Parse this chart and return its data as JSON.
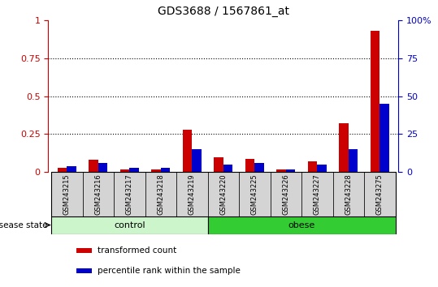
{
  "title": "GDS3688 / 1567861_at",
  "samples": [
    "GSM243215",
    "GSM243216",
    "GSM243217",
    "GSM243218",
    "GSM243219",
    "GSM243220",
    "GSM243225",
    "GSM243226",
    "GSM243227",
    "GSM243228",
    "GSM243275"
  ],
  "transformed_count": [
    0.03,
    0.08,
    0.02,
    0.02,
    0.28,
    0.1,
    0.09,
    0.02,
    0.07,
    0.32,
    0.93
  ],
  "percentile_rank_pct": [
    4,
    6,
    3,
    3,
    15,
    5,
    6,
    2,
    5,
    15,
    45
  ],
  "groups": [
    {
      "label": "control",
      "start": 0,
      "end": 5,
      "color": "#ccf5cc"
    },
    {
      "label": "obese",
      "start": 5,
      "end": 11,
      "color": "#33cc33"
    }
  ],
  "ylim_left": [
    0,
    1.0
  ],
  "ylim_right": [
    0,
    100
  ],
  "yticks_left": [
    0,
    0.25,
    0.5,
    0.75,
    1.0
  ],
  "ytick_labels_left": [
    "0",
    "0.25",
    "0.5",
    "0.75",
    "1"
  ],
  "yticks_right": [
    0,
    25,
    50,
    75,
    100
  ],
  "ytick_labels_right": [
    "0",
    "25",
    "50",
    "75",
    "100%"
  ],
  "left_axis_color": "#cc0000",
  "right_axis_color": "#0000cc",
  "bar_width": 0.3,
  "label_disease_state": "disease state",
  "legend_items": [
    {
      "label": "transformed count",
      "color": "#cc0000"
    },
    {
      "label": "percentile rank within the sample",
      "color": "#0000cc"
    }
  ],
  "background_gray": "#d4d4d4"
}
